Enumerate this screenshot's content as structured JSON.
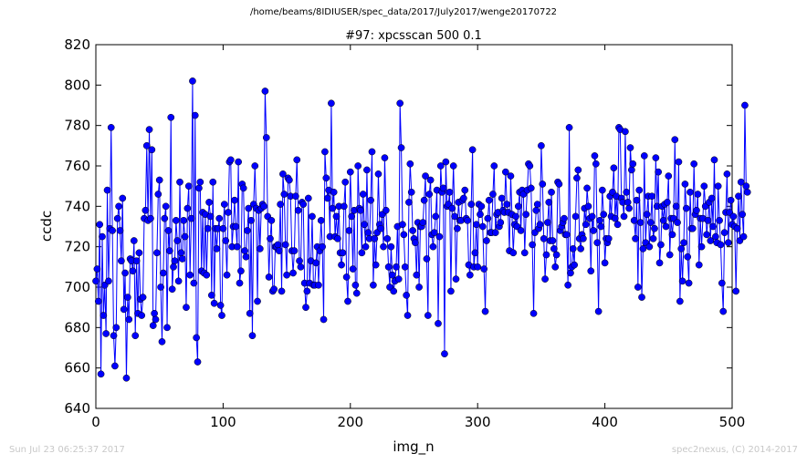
{
  "page": {
    "file_path": "/home/beams/8IDIUSER/spec_data/2017/July2017/wenge20170722",
    "timestamp": "Sun Jul 23 06:25:37 2017",
    "credit": "spec2nexus, (C) 2014-2017"
  },
  "chart_data": {
    "type": "line",
    "title": "#97: xpcsscan 500 0.1",
    "xlabel": "img_n",
    "ylabel": "ccdc",
    "xlim": [
      0,
      500
    ],
    "ylim": [
      640,
      820
    ],
    "x_ticks": [
      0,
      100,
      200,
      300,
      400,
      500
    ],
    "y_ticks": [
      640,
      660,
      680,
      700,
      720,
      740,
      760,
      780,
      800,
      820
    ],
    "grid": false,
    "marker": "circle",
    "color": "#0000ff",
    "series": [
      {
        "x_start": 0,
        "x_step": 1,
        "values": [
          703,
          709,
          693,
          731,
          657,
          725,
          686,
          701,
          677,
          748,
          703,
          729,
          779,
          728,
          676,
          661,
          680,
          734,
          740,
          728,
          713,
          744,
          689,
          707,
          655,
          695,
          684,
          714,
          713,
          708,
          723,
          676,
          713,
          687,
          717,
          694,
          686,
          695,
          734,
          738,
          770,
          733,
          778,
          734,
          768,
          681,
          687,
          684,
          717,
          746,
          753,
          700,
          673,
          707,
          734,
          740,
          680,
          728,
          718,
          784,
          699,
          710,
          713,
          733,
          723,
          703,
          752,
          717,
          714,
          733,
          725,
          690,
          739,
          750,
          706,
          734,
          802,
          702,
          785,
          675,
          663,
          749,
          752,
          708,
          737,
          707,
          736,
          706,
          729,
          742,
          735,
          696,
          752,
          692,
          729,
          719,
          729,
          734,
          691,
          686,
          729,
          741,
          723,
          706,
          737,
          762,
          763,
          720,
          730,
          743,
          730,
          720,
          762,
          702,
          708,
          751,
          749,
          718,
          715,
          728,
          739,
          687,
          733,
          676,
          741,
          760,
          739,
          693,
          738,
          719,
          739,
          741,
          740,
          797,
          774,
          735,
          705,
          724,
          733,
          698,
          699,
          720,
          720,
          721,
          718,
          741,
          698,
          756,
          746,
          721,
          706,
          754,
          753,
          745,
          718,
          707,
          718,
          745,
          763,
          738,
          713,
          710,
          742,
          741,
          702,
          690,
          698,
          744,
          702,
          713,
          735,
          701,
          701,
          712,
          720,
          701,
          718,
          733,
          720,
          684,
          767,
          754,
          744,
          748,
          725,
          791,
          739,
          747,
          725,
          735,
          724,
          740,
          717,
          711,
          717,
          740,
          752,
          705,
          693,
          728,
          757,
          735,
          709,
          738,
          701,
          697,
          760,
          739,
          738,
          717,
          746,
          731,
          720,
          758,
          727,
          724,
          743,
          767,
          701,
          724,
          711,
          727,
          756,
          731,
          729,
          736,
          720,
          764,
          738,
          724,
          710,
          700,
          720,
          706,
          698,
          703,
          710,
          730,
          704,
          791,
          769,
          731,
          726,
          710,
          696,
          686,
          742,
          761,
          747,
          728,
          724,
          722,
          706,
          732,
          700,
          730,
          730,
          732,
          743,
          755,
          714,
          686,
          746,
          753,
          726,
          720,
          727,
          735,
          748,
          682,
          725,
          760,
          747,
          749,
          667,
          762,
          740,
          741,
          747,
          698,
          739,
          760,
          735,
          704,
          729,
          742,
          733,
          733,
          743,
          744,
          748,
          734,
          733,
          711,
          706,
          741,
          768,
          710,
          717,
          731,
          710,
          741,
          736,
          740,
          730,
          709,
          688,
          723,
          734,
          743,
          727,
          727,
          746,
          760,
          727,
          736,
          737,
          730,
          732,
          744,
          738,
          737,
          757,
          741,
          737,
          718,
          755,
          736,
          717,
          731,
          735,
          730,
          740,
          747,
          728,
          748,
          746,
          717,
          736,
          748,
          761,
          760,
          749,
          721,
          687,
          727,
          738,
          741,
          729,
          731,
          770,
          751,
          724,
          704,
          716,
          732,
          742,
          723,
          747,
          723,
          719,
          710,
          716,
          752,
          751,
          728,
          730,
          732,
          734,
          726,
          726,
          701,
          779,
          707,
          710,
          719,
          711,
          735,
          754,
          758,
          724,
          719,
          726,
          724,
          739,
          731,
          749,
          740,
          734,
          708,
          735,
          728,
          765,
          761,
          722,
          688,
          733,
          730,
          748,
          736,
          712,
          724,
          722,
          724,
          745,
          735,
          747,
          759,
          734,
          745,
          731,
          779,
          778,
          744,
          742,
          735,
          777,
          747,
          742,
          739,
          769,
          758,
          761,
          733,
          724,
          743,
          700,
          748,
          732,
          695,
          719,
          765,
          722,
          736,
          745,
          720,
          732,
          745,
          724,
          729,
          764,
          740,
          757,
          712,
          721,
          740,
          733,
          741,
          730,
          742,
          755,
          716,
          734,
          726,
          734,
          773,
          740,
          732,
          762,
          693,
          719,
          703,
          722,
          751,
          739,
          715,
          702,
          747,
          729,
          729,
          761,
          736,
          738,
          746,
          711,
          734,
          720,
          734,
          750,
          740,
          726,
          733,
          742,
          723,
          744,
          730,
          763,
          725,
          722,
          750,
          733,
          721,
          702,
          688,
          727,
          737,
          756,
          722,
          737,
          743,
          731,
          735,
          730,
          698,
          729,
          745,
          723,
          752,
          736,
          725,
          790,
          750,
          747
        ]
      }
    ]
  }
}
